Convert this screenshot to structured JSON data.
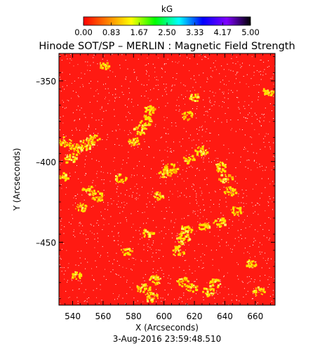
{
  "chart_data": {
    "type": "heatmap",
    "title": "Hinode SOT/SP – MERLIN : Magnetic Field Strength",
    "xlabel": "X (Arcseconds)",
    "ylabel": "Y (Arcseconds)",
    "timestamp": "3-Aug-2016 23:59:48.510",
    "xlim": [
      531,
      673
    ],
    "ylim": [
      -489,
      -333
    ],
    "x_ticks": [
      "540",
      "560",
      "580",
      "600",
      "620",
      "640",
      "660"
    ],
    "x_tick_values": [
      540,
      560,
      580,
      600,
      620,
      640,
      660
    ],
    "y_ticks": [
      "–350",
      "–400",
      "–450"
    ],
    "y_tick_values": [
      -350,
      -400,
      -450
    ],
    "colorbar": {
      "label": "kG",
      "range": [
        0,
        5
      ],
      "ticks": [
        "0.00",
        "0.83",
        "1.67",
        "2.50",
        "3.33",
        "4.17",
        "5.00"
      ],
      "colors": [
        "#ff0000",
        "#ff8000",
        "#ffff00",
        "#00ff00",
        "#00ffff",
        "#0000ff",
        "#8000ff",
        "#000000"
      ]
    },
    "background_color": "#ff1a12",
    "feature_color": "#ffe000",
    "features": [
      {
        "x": 535,
        "y": -387,
        "value": 0.8
      },
      {
        "x": 542,
        "y": -392,
        "value": 0.9
      },
      {
        "x": 548,
        "y": -389,
        "value": 1.0
      },
      {
        "x": 553,
        "y": -386,
        "value": 0.9
      },
      {
        "x": 538,
        "y": -398,
        "value": 0.7
      },
      {
        "x": 533,
        "y": -409,
        "value": 0.8
      },
      {
        "x": 550,
        "y": -418,
        "value": 0.9
      },
      {
        "x": 556,
        "y": -421,
        "value": 0.8
      },
      {
        "x": 545,
        "y": -428,
        "value": 0.7
      },
      {
        "x": 584,
        "y": -380,
        "value": 0.9
      },
      {
        "x": 587,
        "y": -374,
        "value": 1.0
      },
      {
        "x": 590,
        "y": -368,
        "value": 0.8
      },
      {
        "x": 580,
        "y": -387,
        "value": 0.7
      },
      {
        "x": 571,
        "y": -410,
        "value": 0.7
      },
      {
        "x": 600,
        "y": -407,
        "value": 0.8
      },
      {
        "x": 604,
        "y": -404,
        "value": 0.9
      },
      {
        "x": 616,
        "y": -398,
        "value": 0.7
      },
      {
        "x": 624,
        "y": -393,
        "value": 0.8
      },
      {
        "x": 615,
        "y": -371,
        "value": 0.7
      },
      {
        "x": 620,
        "y": -360,
        "value": 0.6
      },
      {
        "x": 637,
        "y": -403,
        "value": 0.8
      },
      {
        "x": 640,
        "y": -410,
        "value": 0.9
      },
      {
        "x": 643,
        "y": -418,
        "value": 0.8
      },
      {
        "x": 647,
        "y": -430,
        "value": 0.7
      },
      {
        "x": 636,
        "y": -437,
        "value": 0.8
      },
      {
        "x": 626,
        "y": -440,
        "value": 0.7
      },
      {
        "x": 612,
        "y": -447,
        "value": 1.0
      },
      {
        "x": 609,
        "y": -455,
        "value": 0.9
      },
      {
        "x": 614,
        "y": -442,
        "value": 0.8
      },
      {
        "x": 589,
        "y": -444,
        "value": 0.7
      },
      {
        "x": 596,
        "y": -421,
        "value": 0.6
      },
      {
        "x": 586,
        "y": -478,
        "value": 0.9
      },
      {
        "x": 591,
        "y": -484,
        "value": 1.0
      },
      {
        "x": 594,
        "y": -473,
        "value": 0.8
      },
      {
        "x": 612,
        "y": -474,
        "value": 0.8
      },
      {
        "x": 618,
        "y": -478,
        "value": 0.7
      },
      {
        "x": 629,
        "y": -480,
        "value": 0.8
      },
      {
        "x": 633,
        "y": -475,
        "value": 0.7
      },
      {
        "x": 662,
        "y": -480,
        "value": 0.7
      },
      {
        "x": 668,
        "y": -356,
        "value": 0.6
      },
      {
        "x": 560,
        "y": -340,
        "value": 0.5
      },
      {
        "x": 575,
        "y": -455,
        "value": 0.6
      },
      {
        "x": 657,
        "y": -463,
        "value": 0.6
      },
      {
        "x": 542,
        "y": -470,
        "value": 0.5
      }
    ]
  }
}
